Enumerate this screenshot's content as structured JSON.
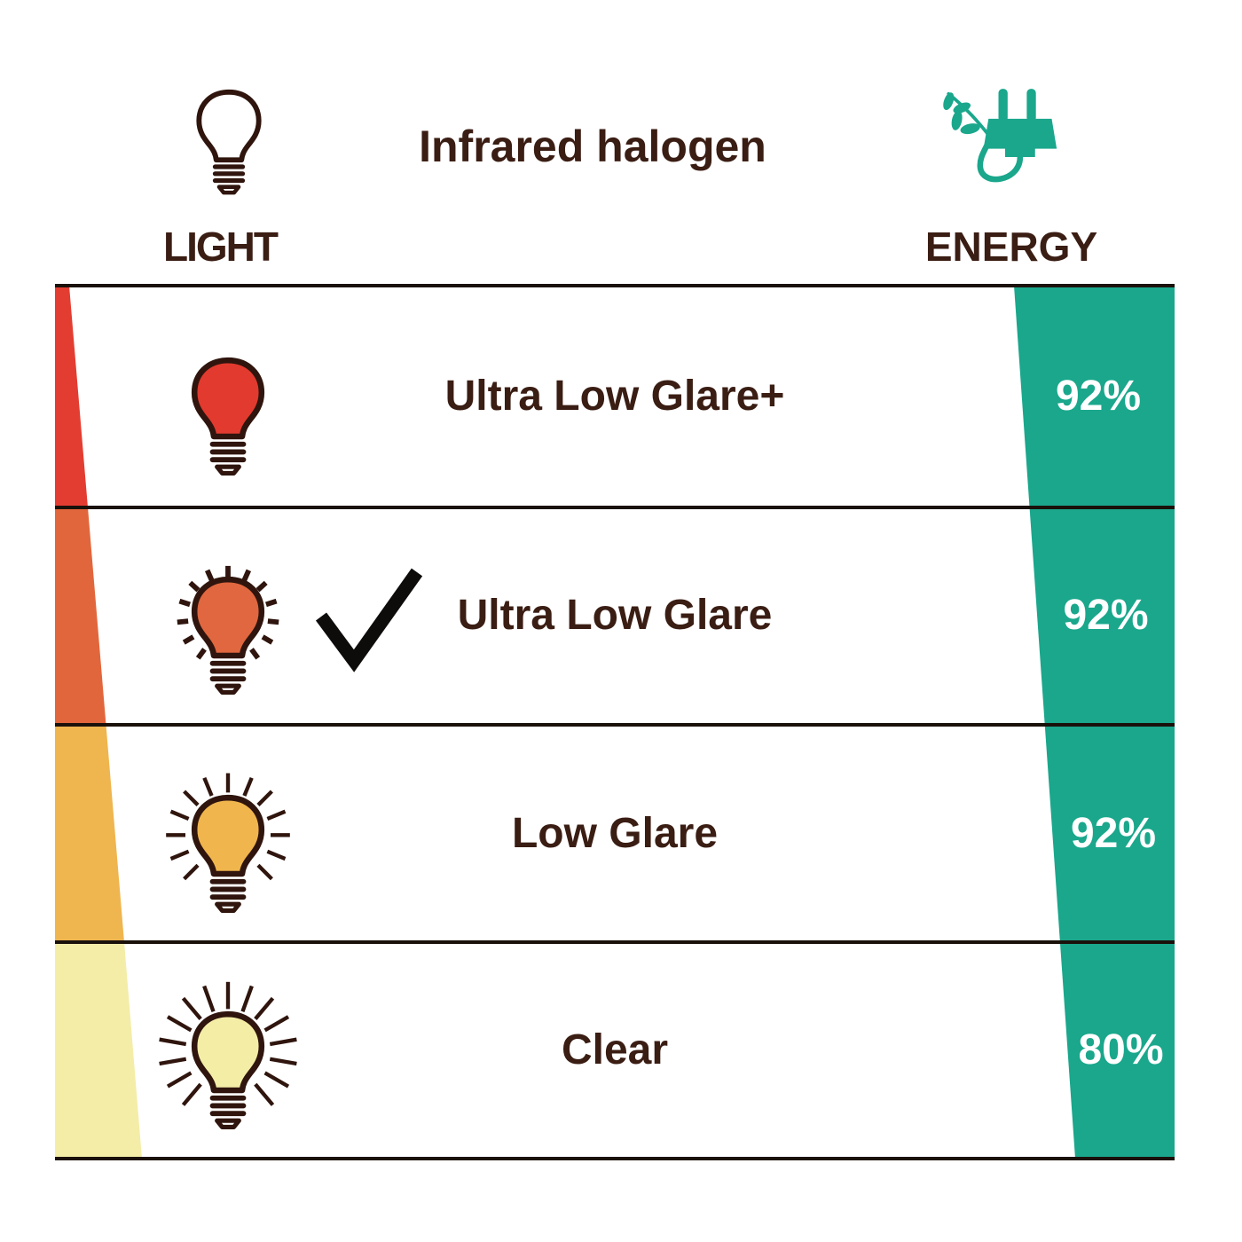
{
  "header": {
    "title": "Infrared halogen",
    "light_label": "LIGHT",
    "energy_label": "ENERGY"
  },
  "icons": {
    "light_column": "bulb-outline-icon",
    "energy_column": "plug-with-leaf-icon",
    "selected_marker": "checkmark-icon"
  },
  "colors": {
    "text_dark": "#3a1d13",
    "table_line": "#1a110b",
    "bulb_outline": "#2f150d",
    "check": "#0e0c0b",
    "percent_text": "#ffffff",
    "green": "#1aa78c",
    "background": "#ffffff"
  },
  "rows": [
    {
      "label": "Ultra Low Glare+",
      "energy": "92%",
      "bulb_color": "#e23a2e",
      "wedge_color": "#e33d31",
      "rays": "none",
      "selected": false
    },
    {
      "label": "Ultra Low Glare",
      "energy": "92%",
      "bulb_color": "#e0673f",
      "wedge_color": "#e2663c",
      "rays": "short",
      "selected": true
    },
    {
      "label": "Low Glare",
      "energy": "92%",
      "bulb_color": "#f0b54d",
      "wedge_color": "#efb54f",
      "rays": "medium",
      "selected": false
    },
    {
      "label": "Clear",
      "energy": "80%",
      "bulb_color": "#f4eda6",
      "wedge_color": "#f3eda8",
      "rays": "long",
      "selected": false
    }
  ],
  "chart_data": {
    "type": "table",
    "title": "Infrared halogen",
    "columns": [
      "LIGHT",
      "ENERGY"
    ],
    "categories": [
      "Ultra Low Glare+",
      "Ultra Low Glare",
      "Low Glare",
      "Clear"
    ],
    "series": [
      {
        "name": "Energy",
        "values": [
          92,
          92,
          92,
          80
        ],
        "unit": "%"
      }
    ],
    "selected_category": "Ultra Low Glare",
    "layout": "left wedge (red to pale yellow) widens downward indicating more light output; right teal wedge narrows downward showing energy percentage"
  }
}
